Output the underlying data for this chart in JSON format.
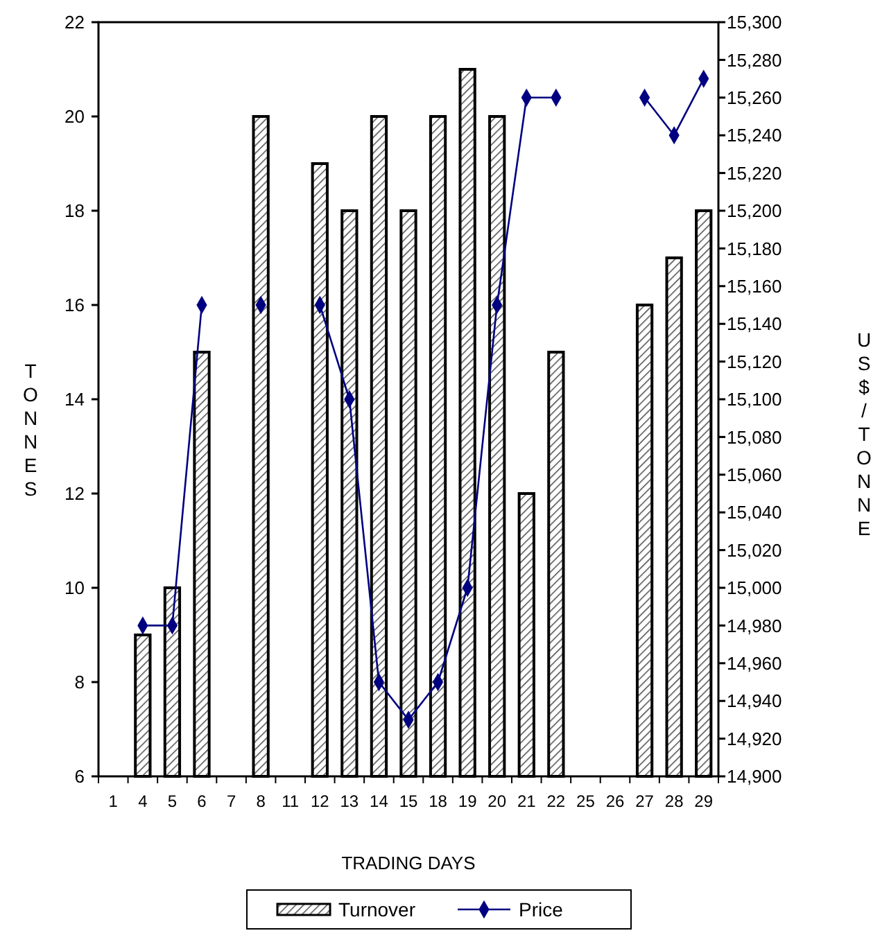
{
  "chart_data": {
    "type": "bar",
    "xlabel": "TRADING DAYS",
    "ylabel": "TONNES",
    "y2label": "US$/TONNE",
    "categories": [
      "1",
      "4",
      "5",
      "6",
      "7",
      "8",
      "11",
      "12",
      "13",
      "14",
      "15",
      "18",
      "19",
      "20",
      "21",
      "22",
      "25",
      "26",
      "27",
      "28",
      "29"
    ],
    "series": [
      {
        "name": "Turnover",
        "color": "#000000",
        "values": [
          null,
          9,
          10,
          15,
          null,
          20,
          null,
          19,
          18,
          20,
          18,
          20,
          21,
          20,
          12,
          15,
          null,
          null,
          16,
          17,
          18
        ]
      },
      {
        "name": "Price",
        "type": "line",
        "axis": "y2",
        "color": "#000080",
        "marker": "diamond",
        "values": [
          null,
          14980,
          14980,
          15150,
          null,
          15150,
          null,
          15150,
          15100,
          14950,
          14930,
          14950,
          15000,
          15150,
          15260,
          15260,
          null,
          null,
          15260,
          15240,
          15270
        ]
      }
    ],
    "ylim": [
      6,
      22
    ],
    "yticks": [
      6,
      8,
      10,
      12,
      14,
      16,
      18,
      20,
      22
    ],
    "y2lim": [
      14900,
      15300
    ],
    "y2ticks": [
      {
        "value": 14900,
        "label": "14,900"
      },
      {
        "value": 14920,
        "label": "14,920"
      },
      {
        "value": 14940,
        "label": "14,940"
      },
      {
        "value": 14960,
        "label": "14,960"
      },
      {
        "value": 14980,
        "label": "14,980"
      },
      {
        "value": 15000,
        "label": "15,000"
      },
      {
        "value": 15020,
        "label": "15,020"
      },
      {
        "value": 15040,
        "label": "15,040"
      },
      {
        "value": 15060,
        "label": "15,060"
      },
      {
        "value": 15080,
        "label": "15,080"
      },
      {
        "value": 15100,
        "label": "15,100"
      },
      {
        "value": 15120,
        "label": "15,120"
      },
      {
        "value": 15140,
        "label": "15,140"
      },
      {
        "value": 15160,
        "label": "15,160"
      },
      {
        "value": 15180,
        "label": "15,180"
      },
      {
        "value": 15200,
        "label": "15,200"
      },
      {
        "value": 15220,
        "label": "15,220"
      },
      {
        "value": 15240,
        "label": "15,240"
      },
      {
        "value": 15260,
        "label": "15,260"
      },
      {
        "value": 15280,
        "label": "15,280"
      },
      {
        "value": 15300,
        "label": "15,300"
      }
    ],
    "grid": false,
    "legend": "bottom"
  }
}
